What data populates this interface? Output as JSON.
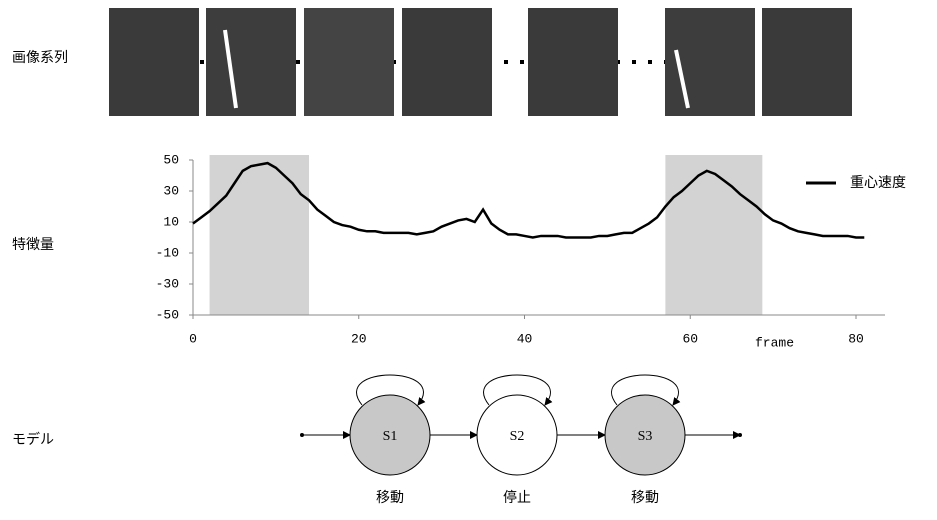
{
  "row_labels": {
    "images": "画像系列",
    "features": "特徴量",
    "model": "モデル"
  },
  "chart_data": {
    "type": "line",
    "x": [
      0,
      1,
      2,
      3,
      4,
      5,
      6,
      7,
      8,
      9,
      10,
      11,
      12,
      13,
      14,
      15,
      16,
      17,
      18,
      19,
      20,
      21,
      22,
      23,
      24,
      25,
      26,
      27,
      28,
      29,
      30,
      31,
      32,
      33,
      34,
      35,
      36,
      37,
      38,
      39,
      40,
      41,
      42,
      43,
      44,
      45,
      46,
      47,
      48,
      49,
      50,
      51,
      52,
      53,
      54,
      55,
      56,
      57,
      58,
      59,
      60,
      61,
      62,
      63,
      64,
      65,
      66,
      67,
      68,
      69,
      70,
      71,
      72,
      73,
      74,
      75,
      76,
      77,
      78,
      79,
      80,
      81
    ],
    "series": [
      {
        "name": "重心速度",
        "color": "#000000",
        "values": [
          9,
          13,
          17,
          22,
          27,
          35,
          43,
          46,
          47,
          48,
          45,
          40,
          35,
          28,
          24,
          18,
          14,
          10,
          8,
          7,
          5,
          4,
          4,
          3,
          3,
          3,
          3,
          2,
          3,
          4,
          7,
          9,
          11,
          12,
          10,
          18,
          9,
          5,
          2,
          2,
          1,
          0,
          1,
          1,
          1,
          0,
          0,
          0,
          0,
          1,
          1,
          2,
          3,
          3,
          6,
          9,
          13,
          20,
          26,
          30,
          35,
          40,
          43,
          41,
          37,
          33,
          28,
          24,
          20,
          15,
          11,
          9,
          6,
          4,
          3,
          2,
          1,
          1,
          1,
          1,
          0,
          0
        ]
      }
    ],
    "xlabel": "frame",
    "xlim": [
      0,
      83.5
    ],
    "ylim": [
      -50,
      50
    ],
    "xticks": [
      0,
      20,
      40,
      60,
      80
    ],
    "yticks": [
      -50,
      -30,
      -10,
      10,
      30,
      50
    ],
    "shaded": [
      [
        2,
        14
      ],
      [
        57,
        68.7
      ]
    ],
    "shade_color": "#d3d3d3"
  },
  "model": {
    "states": [
      {
        "label": "S1",
        "caption": "移動",
        "fill": "#c8c8c8"
      },
      {
        "label": "S2",
        "caption": "停止",
        "fill": "#ffffff"
      },
      {
        "label": "S3",
        "caption": "移動",
        "fill": "#c8c8c8"
      }
    ]
  }
}
